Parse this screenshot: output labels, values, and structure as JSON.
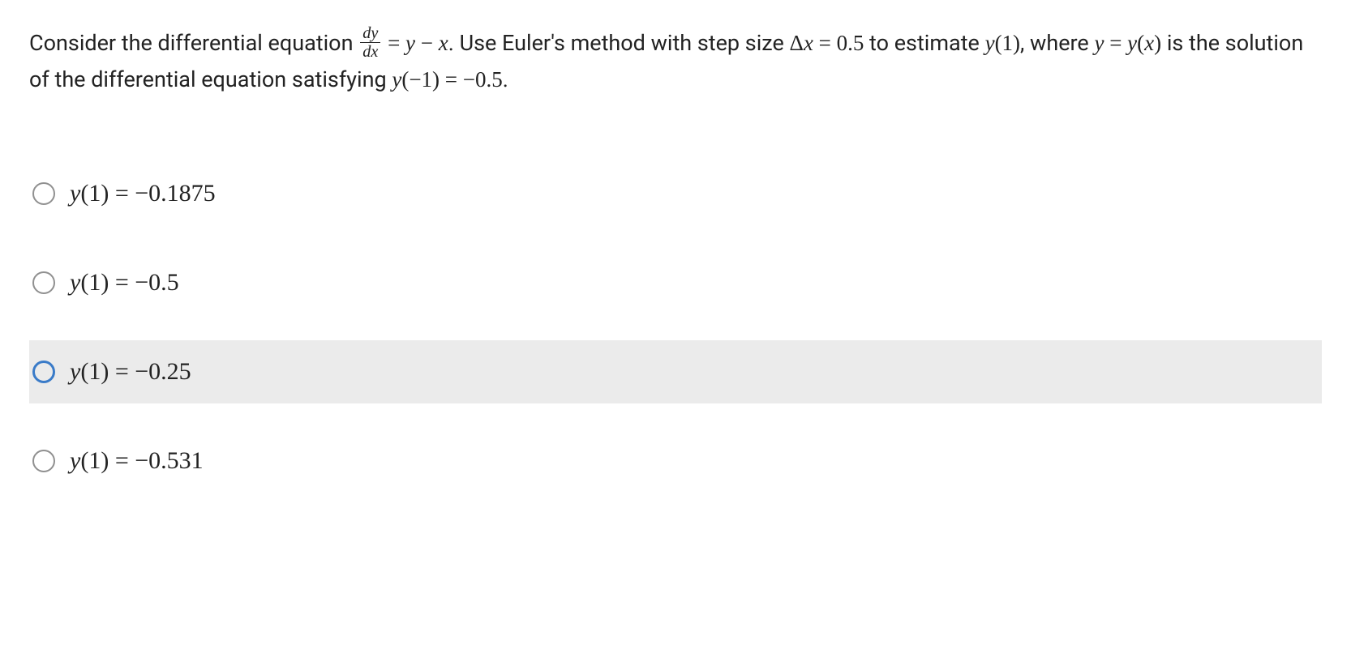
{
  "question": {
    "part1": "Consider the differential equation ",
    "frac_num": "dy",
    "frac_den": "dx",
    "eq1": " = ",
    "math1a": "y",
    "minus1": " − ",
    "math1b": "x",
    "part2": ". Use Euler's method with step size ",
    "delta": "Δ",
    "math2": "x",
    "eq2": " = 0.5",
    "part3": "  to estimate ",
    "math3a": "y",
    "math3b": "(1)",
    "part4": ", where ",
    "math4a": "y",
    "eq3": " = ",
    "math4b": "y",
    "math4c": "(",
    "math4d": "x",
    "math4e": ")",
    "part5": " is the solution of the differential equation satisfying ",
    "math5a": "y",
    "math5b": "(−1) = −0.5",
    "part6": "."
  },
  "options": [
    {
      "y": "y",
      "open": "(",
      "arg": "1",
      "close": ")",
      "eq": " = ",
      "val": "−0.1875",
      "highlighted": false
    },
    {
      "y": "y",
      "open": "(",
      "arg": "1",
      "close": ")",
      "eq": " = ",
      "val": "−0.5",
      "highlighted": false
    },
    {
      "y": "y",
      "open": "(",
      "arg": "1",
      "close": ")",
      "eq": " = ",
      "val": "−0.25",
      "highlighted": true
    },
    {
      "y": "y",
      "open": "(",
      "arg": "1",
      "close": ")",
      "eq": " = ",
      "val": "−0.531",
      "highlighted": false
    }
  ],
  "colors": {
    "background": "#ffffff",
    "text": "#222222",
    "radio_border": "#909090",
    "radio_border_hover": "#3a7bc8",
    "highlight_bg": "#ebebeb"
  }
}
